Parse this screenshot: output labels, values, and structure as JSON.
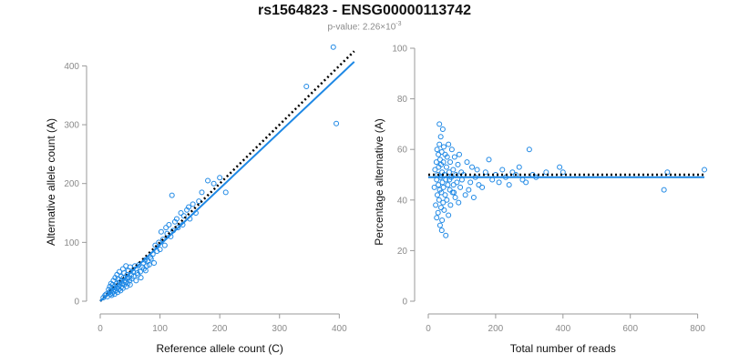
{
  "header": {
    "title": "rs1564823 - ENSG00000113742",
    "pvalue_prefix": "p-value: 2.26×10",
    "pvalue_exponent": "-3"
  },
  "colors": {
    "points": "#1e88e5",
    "fit": "#1e88e5",
    "reference_line": "#000000"
  },
  "chart_data": [
    {
      "type": "scatter",
      "title": "",
      "xlabel": "Reference allele count (C)",
      "ylabel": "Alternative allele count (A)",
      "xlim": [
        0,
        430
      ],
      "ylim": [
        0,
        430
      ],
      "xticks": [
        0,
        100,
        200,
        300,
        400
      ],
      "yticks": [
        0,
        100,
        200,
        300,
        400
      ],
      "reference_line": {
        "style": "dotted",
        "x": [
          0,
          425
        ],
        "y": [
          0,
          425
        ]
      },
      "fit_line": {
        "style": "solid",
        "x": [
          0,
          425
        ],
        "y": [
          0,
          407
        ]
      },
      "x": [
        5,
        8,
        10,
        12,
        14,
        15,
        16,
        17,
        18,
        18,
        19,
        20,
        20,
        21,
        22,
        22,
        23,
        24,
        25,
        25,
        26,
        27,
        28,
        28,
        29,
        30,
        30,
        31,
        32,
        32,
        33,
        34,
        35,
        35,
        36,
        37,
        38,
        38,
        39,
        40,
        40,
        41,
        42,
        43,
        44,
        45,
        45,
        46,
        47,
        48,
        49,
        50,
        50,
        52,
        53,
        55,
        56,
        58,
        60,
        60,
        62,
        63,
        65,
        67,
        68,
        70,
        72,
        73,
        75,
        76,
        78,
        80,
        82,
        84,
        85,
        88,
        90,
        92,
        95,
        98,
        100,
        102,
        105,
        108,
        110,
        112,
        115,
        118,
        120,
        122,
        125,
        128,
        130,
        135,
        138,
        140,
        145,
        148,
        150,
        155,
        160,
        165,
        170,
        180,
        190,
        200,
        210,
        345,
        390,
        395
      ],
      "y": [
        6,
        10,
        12,
        8,
        20,
        15,
        25,
        12,
        18,
        30,
        10,
        22,
        14,
        28,
        16,
        35,
        20,
        12,
        26,
        40,
        18,
        30,
        22,
        45,
        15,
        25,
        38,
        20,
        32,
        50,
        28,
        18,
        42,
        24,
        35,
        30,
        55,
        22,
        40,
        28,
        48,
        35,
        32,
        60,
        25,
        38,
        45,
        30,
        52,
        40,
        35,
        58,
        28,
        45,
        38,
        50,
        42,
        60,
        35,
        55,
        48,
        45,
        62,
        50,
        40,
        58,
        65,
        55,
        70,
        52,
        60,
        68,
        62,
        75,
        72,
        80,
        65,
        95,
        85,
        100,
        88,
        118,
        105,
        95,
        125,
        115,
        130,
        110,
        180,
        120,
        135,
        140,
        125,
        150,
        130,
        145,
        155,
        160,
        140,
        165,
        150,
        170,
        185,
        205,
        200,
        210,
        185,
        365,
        432,
        302
      ]
    },
    {
      "type": "scatter",
      "title": "",
      "xlabel": "Total number of reads",
      "ylabel": "Percentage alternative (A)",
      "xlim": [
        0,
        820
      ],
      "ylim": [
        0,
        100
      ],
      "xticks": [
        0,
        200,
        400,
        600,
        800
      ],
      "yticks": [
        0,
        20,
        40,
        60,
        80,
        100
      ],
      "reference_line": {
        "style": "dotted",
        "y": 50
      },
      "fit_line": {
        "style": "solid",
        "y": 49
      },
      "x": [
        18,
        20,
        22,
        24,
        25,
        26,
        27,
        28,
        29,
        30,
        30,
        31,
        32,
        33,
        34,
        35,
        35,
        36,
        37,
        38,
        38,
        39,
        40,
        40,
        41,
        42,
        43,
        44,
        45,
        45,
        46,
        47,
        48,
        50,
        50,
        52,
        54,
        55,
        56,
        58,
        60,
        60,
        62,
        64,
        65,
        66,
        68,
        70,
        72,
        74,
        75,
        78,
        80,
        82,
        85,
        88,
        90,
        92,
        95,
        98,
        100,
        105,
        110,
        115,
        120,
        125,
        130,
        135,
        140,
        145,
        150,
        160,
        170,
        180,
        190,
        200,
        210,
        220,
        230,
        240,
        250,
        260,
        270,
        280,
        290,
        300,
        310,
        320,
        350,
        390,
        400,
        700,
        710,
        820,
        25,
        33,
        41,
        52,
        63,
        76
      ],
      "y": [
        45,
        52,
        38,
        55,
        48,
        60,
        42,
        50,
        35,
        58,
        46,
        53,
        40,
        62,
        44,
        56,
        30,
        49,
        65,
        37,
        54,
        43,
        59,
        28,
        51,
        47,
        68,
        39,
        55,
        45,
        61,
        36,
        50,
        58,
        42,
        48,
        53,
        40,
        57,
        46,
        62,
        34,
        51,
        44,
        55,
        38,
        49,
        60,
        43,
        52,
        46,
        57,
        41,
        50,
        47,
        54,
        39,
        58,
        45,
        51,
        48,
        50,
        42,
        55,
        44,
        47,
        53,
        41,
        49,
        52,
        46,
        45,
        51,
        56,
        48,
        50,
        47,
        52,
        49,
        46,
        51,
        50,
        53,
        48,
        47,
        60,
        50,
        49,
        51,
        53,
        51,
        44,
        51,
        52,
        33,
        70,
        32,
        26,
        48,
        43
      ]
    }
  ]
}
